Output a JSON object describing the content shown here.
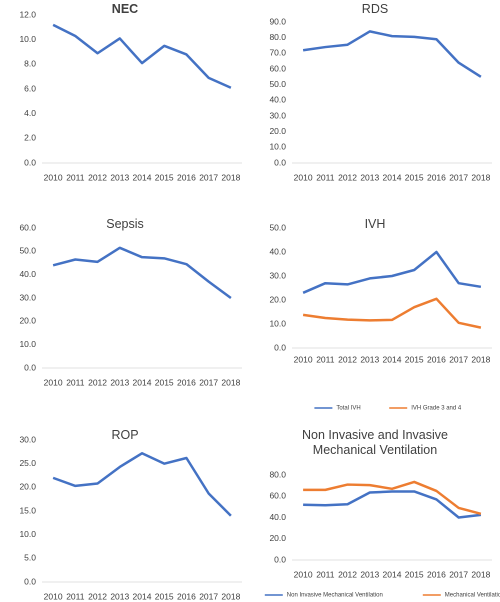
{
  "chart_data": [
    {
      "type": "line",
      "title": "NEC",
      "categories": [
        "2010",
        "2011",
        "2012",
        "2013",
        "2014",
        "2015",
        "2016",
        "2017",
        "2018"
      ],
      "values": [
        11.2,
        10.3,
        8.9,
        10.1,
        8.1,
        9.5,
        8.8,
        6.9,
        6.1
      ],
      "color": "#4472c4",
      "ylim": [
        0,
        12
      ],
      "yticks": [
        {
          "value": 0,
          "label": "0.0"
        },
        {
          "value": 2,
          "label": "2.0"
        },
        {
          "value": 4,
          "label": "4.0"
        },
        {
          "value": 6,
          "label": "6.0"
        },
        {
          "value": 8,
          "label": "8.0"
        },
        {
          "value": 10,
          "label": "10.0"
        },
        {
          "value": 12,
          "label": "12.0"
        }
      ]
    },
    {
      "type": "line",
      "title": "RDS",
      "categories": [
        "2010",
        "2011",
        "2012",
        "2013",
        "2014",
        "2015",
        "2016",
        "2017",
        "2018"
      ],
      "values": [
        72,
        74,
        75.5,
        84,
        81,
        80.5,
        79,
        64,
        55
      ],
      "color": "#4472c4",
      "ylim": [
        0,
        90
      ],
      "yticks": [
        {
          "value": 0,
          "label": "0.0"
        },
        {
          "value": 10,
          "label": "10.0"
        },
        {
          "value": 20,
          "label": "20.0"
        },
        {
          "value": 30,
          "label": "30.0"
        },
        {
          "value": 40,
          "label": "40.0"
        },
        {
          "value": 50,
          "label": "50.0"
        },
        {
          "value": 60,
          "label": "60.0"
        },
        {
          "value": 70,
          "label": "70.0"
        },
        {
          "value": 80,
          "label": "80.0"
        },
        {
          "value": 90,
          "label": "90.0"
        }
      ]
    },
    {
      "type": "line",
      "title": "Sepsis",
      "categories": [
        "2010",
        "2011",
        "2012",
        "2013",
        "2014",
        "2015",
        "2016",
        "2017",
        "2018"
      ],
      "values": [
        44,
        46.5,
        45.5,
        51.5,
        47.5,
        47,
        44.5,
        37,
        30
      ],
      "color": "#4472c4",
      "ylim": [
        0,
        60
      ],
      "yticks": [
        {
          "value": 0,
          "label": "0.0"
        },
        {
          "value": 10,
          "label": "10.0"
        },
        {
          "value": 20,
          "label": "20.0"
        },
        {
          "value": 30,
          "label": "30.0"
        },
        {
          "value": 40,
          "label": "40.0"
        },
        {
          "value": 50,
          "label": "50.0"
        },
        {
          "value": 60,
          "label": "60.0"
        }
      ]
    },
    {
      "type": "line",
      "title": "IVH",
      "categories": [
        "2010",
        "2011",
        "2012",
        "2013",
        "2014",
        "2015",
        "2016",
        "2017",
        "2018"
      ],
      "series": [
        {
          "name": "Total IVH",
          "color": "#4472c4",
          "values": [
            23,
            27,
            26.5,
            29,
            30,
            32.5,
            40,
            27,
            25.5
          ]
        },
        {
          "name": "IVH Grade 3 and 4",
          "color": "#ed7d31",
          "values": [
            13.8,
            12.5,
            11.8,
            11.5,
            11.7,
            17,
            20.5,
            10.5,
            8.5
          ]
        }
      ],
      "ylim": [
        0,
        50
      ],
      "yticks": [
        {
          "value": 0,
          "label": "0.0"
        },
        {
          "value": 10,
          "label": "10.0"
        },
        {
          "value": 20,
          "label": "20.0"
        },
        {
          "value": 30,
          "label": "30.0"
        },
        {
          "value": 40,
          "label": "40.0"
        },
        {
          "value": 50,
          "label": "50.0"
        }
      ],
      "legend": "bottom"
    },
    {
      "type": "line",
      "title": "ROP",
      "categories": [
        "2010",
        "2011",
        "2012",
        "2013",
        "2014",
        "2015",
        "2016",
        "2017",
        "2018"
      ],
      "values": [
        22,
        20.3,
        20.8,
        24.3,
        27.2,
        25,
        26.2,
        18.7,
        14
      ],
      "color": "#4472c4",
      "ylim": [
        0,
        30
      ],
      "yticks": [
        {
          "value": 0,
          "label": "0.0"
        },
        {
          "value": 5,
          "label": "5.0"
        },
        {
          "value": 10,
          "label": "10.0"
        },
        {
          "value": 15,
          "label": "15.0"
        },
        {
          "value": 20,
          "label": "20.0"
        },
        {
          "value": 25,
          "label": "25.0"
        },
        {
          "value": 30,
          "label": "30.0"
        }
      ]
    },
    {
      "type": "line",
      "title": "Non Invasive and Invasive Mechanical Ventilation",
      "categories": [
        "2010",
        "2011",
        "2012",
        "2013",
        "2014",
        "2015",
        "2016",
        "2017",
        "2018"
      ],
      "series": [
        {
          "name": "Non Invasive Mechanical Ventilation",
          "color": "#4472c4",
          "values": [
            52,
            51.5,
            52.5,
            63.5,
            64.5,
            64.5,
            57,
            40,
            42.5
          ]
        },
        {
          "name": "Mechanical Ventilation",
          "color": "#ed7d31",
          "values": [
            66,
            66,
            71,
            70.5,
            67,
            73.5,
            65,
            49,
            43.5
          ]
        }
      ],
      "ylim": [
        0,
        80
      ],
      "yticks": [
        {
          "value": 0,
          "label": "0.0"
        },
        {
          "value": 20,
          "label": "20.0"
        },
        {
          "value": 40,
          "label": "40.0"
        },
        {
          "value": 60,
          "label": "60.0"
        },
        {
          "value": 80,
          "label": "80.0"
        }
      ],
      "legend": "bottom"
    }
  ]
}
